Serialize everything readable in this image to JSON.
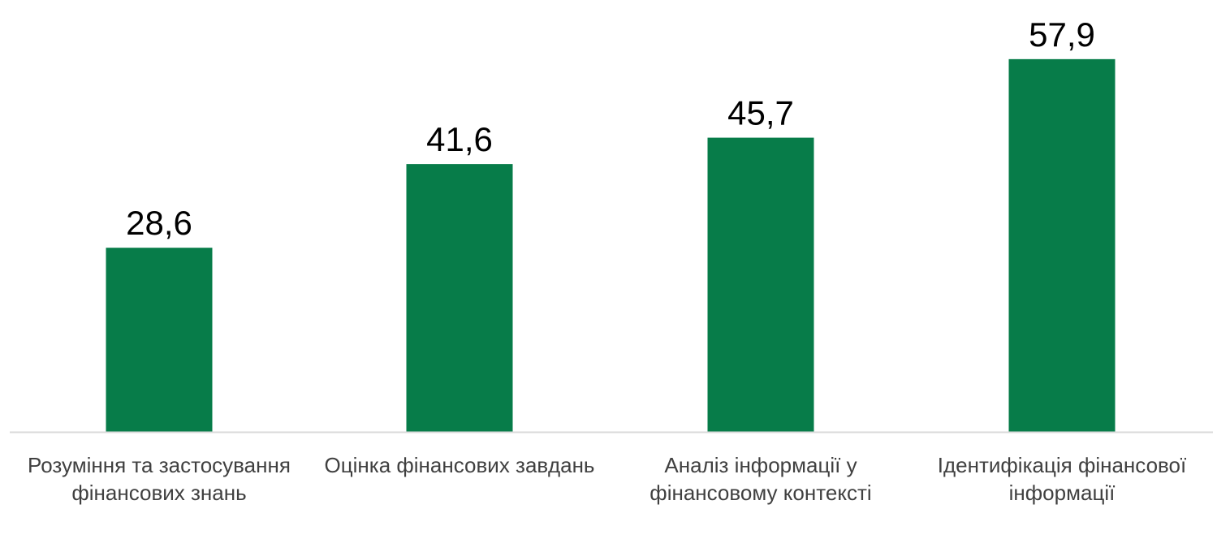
{
  "chart_data": {
    "type": "bar",
    "categories": [
      "Розуміння та застосування фінансових знань",
      "Оцінка фінансових завдань",
      "Аналіз інформації у фінансовому контексті",
      "Ідентифікація фінансової інформації"
    ],
    "values": [
      28.6,
      41.6,
      45.7,
      57.9
    ],
    "value_labels": [
      "28,6",
      "41,6",
      "45,7",
      "57,9"
    ],
    "title": "",
    "xlabel": "",
    "ylabel": "",
    "ylim": [
      0,
      60
    ],
    "grid": false,
    "legend": "none",
    "bar_color": "#077C49",
    "axis_color": "#D9D9D9"
  }
}
